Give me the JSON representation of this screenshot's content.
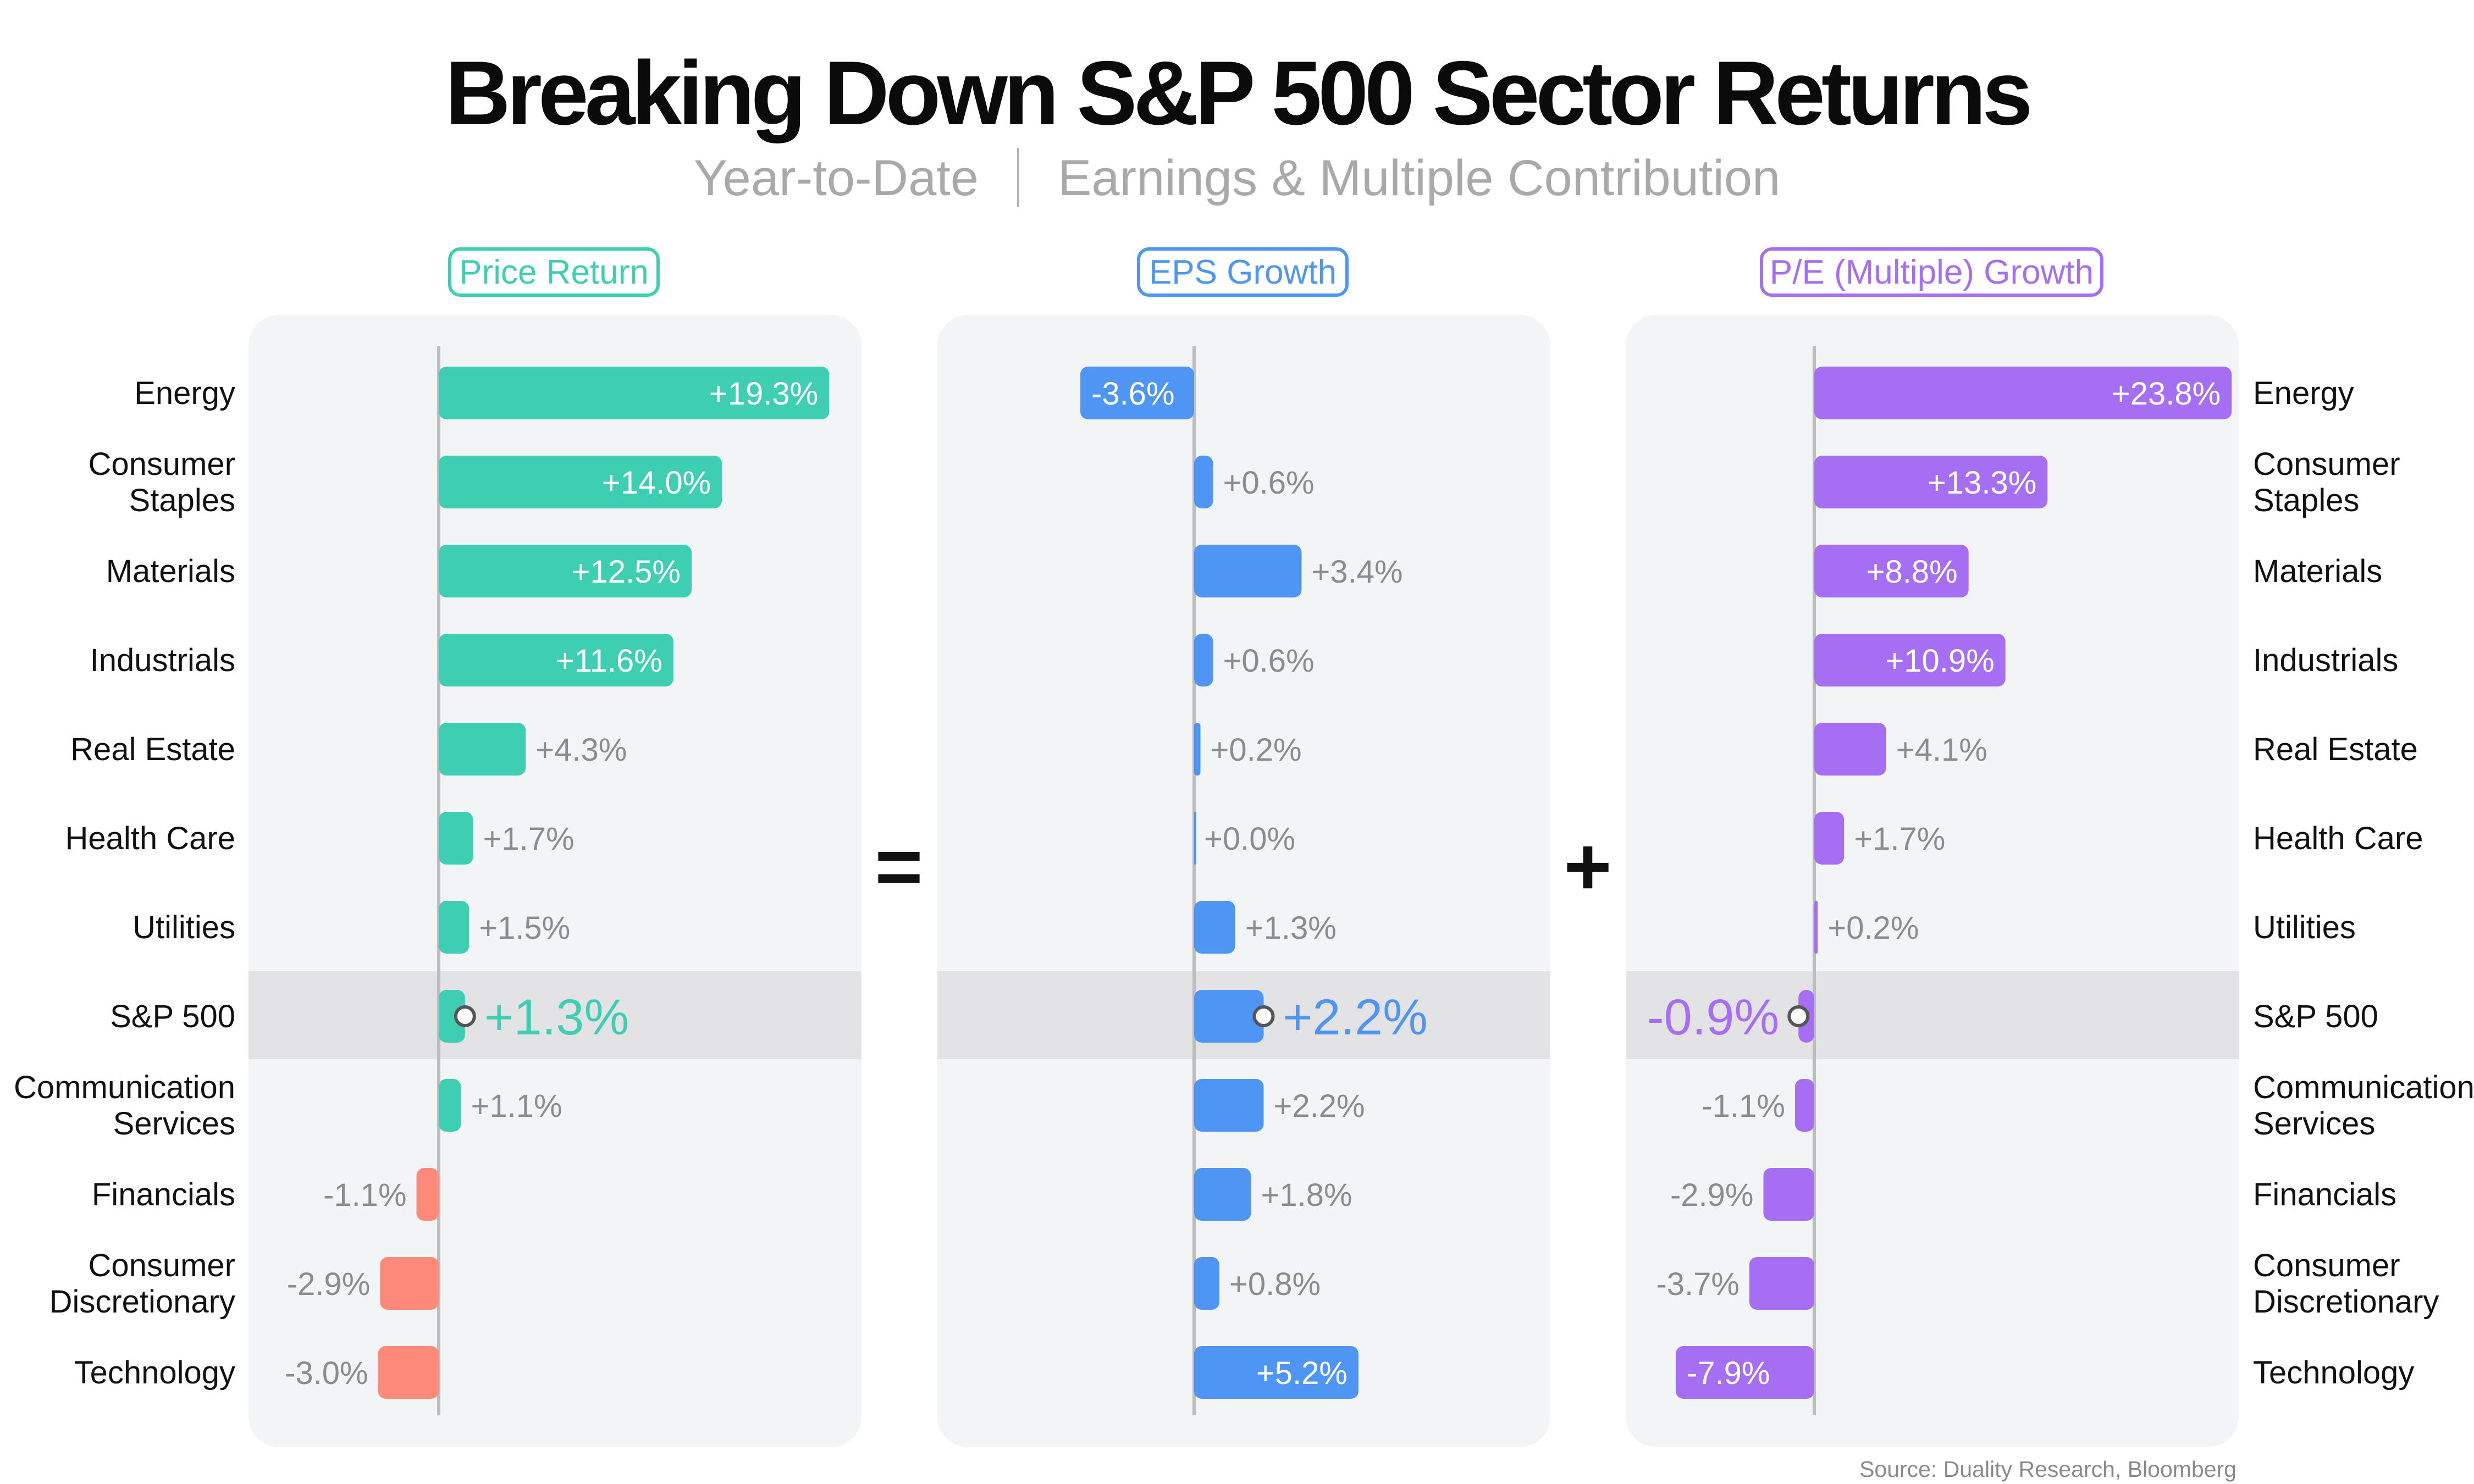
{
  "title": "Breaking Down S&P 500 Sector Returns",
  "subtitle": {
    "left": "Year-to-Date",
    "right": "Earnings & Multiple Contribution"
  },
  "operators": {
    "equals": "=",
    "plus": "+"
  },
  "source": "Source: Duality Research, Bloomberg",
  "colors": {
    "price_positive": "#3ecfb2",
    "price_negative": "#fb8a7b",
    "eps": "#4e95f4",
    "pe": "#a56ef3",
    "label_gray": "#8c8c8c"
  },
  "chart_data": {
    "type": "bar",
    "orientation": "horizontal",
    "categories": [
      "Energy",
      "Consumer Staples",
      "Materials",
      "Industrials",
      "Real Estate",
      "Health Care",
      "Utilities",
      "S&P 500",
      "Communication Services",
      "Financials",
      "Consumer Discretionary",
      "Technology"
    ],
    "category_labels": [
      [
        "Energy"
      ],
      [
        "Consumer",
        "Staples"
      ],
      [
        "Materials"
      ],
      [
        "Industrials"
      ],
      [
        "Real Estate"
      ],
      [
        "Health Care"
      ],
      [
        "Utilities"
      ],
      [
        "S&P 500"
      ],
      [
        "Communication",
        "Services"
      ],
      [
        "Financials"
      ],
      [
        "Consumer",
        "Discretionary"
      ],
      [
        "Technology"
      ]
    ],
    "highlight_category": "S&P 500",
    "series": [
      {
        "name": "Price Return",
        "values": [
          19.3,
          14.0,
          12.5,
          11.6,
          4.3,
          1.7,
          1.5,
          1.3,
          1.1,
          -1.1,
          -2.9,
          -3.0
        ],
        "labels": [
          "+19.3%",
          "+14.0%",
          "+12.5%",
          "+11.6%",
          "+4.3%",
          "+1.7%",
          "+1.5%",
          "+1.3%",
          "+1.1%",
          "-1.1%",
          "-2.9%",
          "-3.0%"
        ]
      },
      {
        "name": "EPS Growth",
        "values": [
          -3.6,
          0.6,
          3.4,
          0.6,
          0.2,
          0.0,
          1.3,
          2.2,
          2.2,
          1.8,
          0.8,
          5.2
        ],
        "labels": [
          "-3.6%",
          "+0.6%",
          "+3.4%",
          "+0.6%",
          "+0.2%",
          "+0.0%",
          "+1.3%",
          "+2.2%",
          "+2.2%",
          "+1.8%",
          "+0.8%",
          "+5.2%"
        ]
      },
      {
        "name": "P/E (Multiple) Growth",
        "values": [
          23.8,
          13.3,
          8.8,
          10.9,
          4.1,
          1.7,
          0.2,
          -0.9,
          -1.1,
          -2.9,
          -3.7,
          -7.9
        ],
        "labels": [
          "+23.8%",
          "+13.3%",
          "+8.8%",
          "+10.9%",
          "+4.1%",
          "+1.7%",
          "+0.2%",
          "-0.9%",
          "-1.1%",
          "-2.9%",
          "-3.7%",
          "-7.9%"
        ]
      }
    ]
  }
}
